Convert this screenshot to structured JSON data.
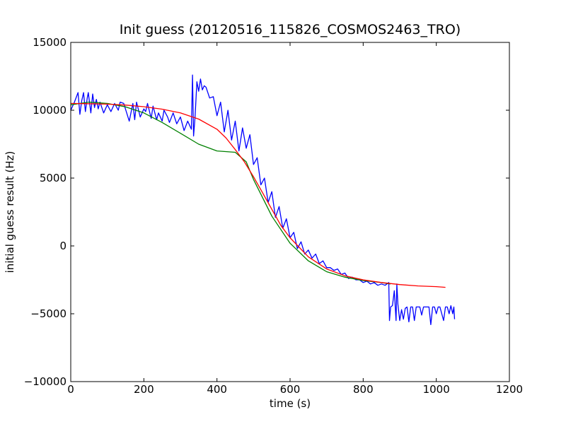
{
  "chart_data": {
    "type": "line",
    "title": "Init guess (20120516_115826_COSMOS2463_TRO)",
    "xlabel": "time (s)",
    "ylabel": "initial guess result (Hz)",
    "xlim": [
      0,
      1200
    ],
    "ylim": [
      -10000,
      15000
    ],
    "xticks": [
      0,
      200,
      400,
      600,
      800,
      1000,
      1200
    ],
    "yticks": [
      -10000,
      -5000,
      0,
      5000,
      10000,
      15000
    ],
    "xtick_labels": [
      "0",
      "200",
      "400",
      "600",
      "800",
      "1000",
      "1200"
    ],
    "ytick_labels": [
      "−10000",
      "−5000",
      "0",
      "5000",
      "10000",
      "15000"
    ],
    "grid": false,
    "legend": "none",
    "series": [
      {
        "color": "#0000ff",
        "x": [
          0,
          10,
          20,
          25,
          30,
          35,
          40,
          45,
          48,
          55,
          60,
          65,
          70,
          75,
          80,
          90,
          100,
          110,
          120,
          130,
          135,
          145,
          160,
          170,
          175,
          180,
          190,
          200,
          205,
          210,
          220,
          225,
          235,
          240,
          250,
          255,
          265,
          270,
          280,
          290,
          300,
          310,
          320,
          330,
          333,
          336,
          340,
          345,
          350,
          355,
          360,
          365,
          370,
          380,
          390,
          400,
          410,
          420,
          430,
          440,
          450,
          460,
          470,
          480,
          490,
          500,
          510,
          520,
          530,
          540,
          550,
          560,
          570,
          580,
          590,
          600,
          610,
          620,
          630,
          640,
          650,
          660,
          670,
          680,
          690,
          700,
          710,
          720,
          730,
          740,
          750,
          760,
          770,
          780,
          790,
          800,
          810,
          820,
          830,
          840,
          850,
          860,
          870,
          872,
          875,
          880,
          885,
          890,
          892,
          895,
          900,
          905,
          910,
          915,
          920,
          925,
          930,
          935,
          940,
          945,
          950,
          955,
          960,
          965,
          970,
          975,
          980,
          985,
          990,
          995,
          1000,
          1005,
          1010,
          1015,
          1020,
          1025,
          1030,
          1035,
          1040,
          1045,
          1048,
          1050
        ],
        "y": [
          10000,
          10600,
          11300,
          9700,
          10700,
          11300,
          9900,
          10900,
          11300,
          9800,
          11200,
          10200,
          10800,
          10100,
          10600,
          9800,
          10400,
          9900,
          10500,
          10000,
          10600,
          10500,
          9200,
          10500,
          9300,
          10600,
          9500,
          10100,
          9900,
          10500,
          9400,
          10300,
          9300,
          9800,
          9200,
          10000,
          9500,
          9100,
          9800,
          9000,
          9500,
          8500,
          9200,
          8600,
          12600,
          8100,
          9500,
          12100,
          11400,
          12300,
          11500,
          11800,
          11700,
          10900,
          11000,
          9600,
          10600,
          8400,
          10000,
          7800,
          9200,
          7000,
          8700,
          7200,
          8200,
          6000,
          6500,
          4500,
          5000,
          3200,
          4000,
          2100,
          2900,
          1300,
          2000,
          600,
          1000,
          -200,
          300,
          -600,
          -300,
          -900,
          -600,
          -1300,
          -1100,
          -1600,
          -1600,
          -1800,
          -1700,
          -2100,
          -2000,
          -2400,
          -2300,
          -2500,
          -2500,
          -2700,
          -2600,
          -2800,
          -2700,
          -2900,
          -2800,
          -2900,
          -2700,
          -5500,
          -4500,
          -4400,
          -3300,
          -5500,
          -2800,
          -4300,
          -5500,
          -4700,
          -5400,
          -4600,
          -4500,
          -5600,
          -4500,
          -4500,
          -5500,
          -4500,
          -4500,
          -4500,
          -5100,
          -4500,
          -4500,
          -4500,
          -4500,
          -5800,
          -4500,
          -4500,
          -5000,
          -4500,
          -4500,
          -5000,
          -5500,
          -4500,
          -4500,
          -5000,
          -4400,
          -5000,
          -4500,
          -5400
        ]
      },
      {
        "color": "#008000",
        "x": [
          0,
          50,
          100,
          150,
          200,
          250,
          300,
          350,
          400,
          450,
          480,
          500,
          550,
          600,
          650,
          700,
          750,
          800,
          850,
          875
        ],
        "y": [
          10400,
          10600,
          10500,
          10250,
          9800,
          9100,
          8300,
          7500,
          7000,
          6900,
          6200,
          4900,
          2200,
          200,
          -1100,
          -1900,
          -2300,
          -2550,
          -2700,
          -2800
        ]
      },
      {
        "color": "#ff0000",
        "x": [
          0,
          50,
          100,
          150,
          200,
          250,
          300,
          350,
          400,
          425,
          450,
          475,
          500,
          525,
          550,
          575,
          600,
          650,
          700,
          750,
          800,
          850,
          900,
          950,
          1000,
          1025
        ],
        "y": [
          10500,
          10480,
          10450,
          10380,
          10260,
          10080,
          9800,
          9350,
          8600,
          7950,
          7100,
          6200,
          5100,
          3900,
          2700,
          1500,
          600,
          -800,
          -1700,
          -2200,
          -2500,
          -2700,
          -2850,
          -2950,
          -3000,
          -3050
        ]
      }
    ]
  }
}
